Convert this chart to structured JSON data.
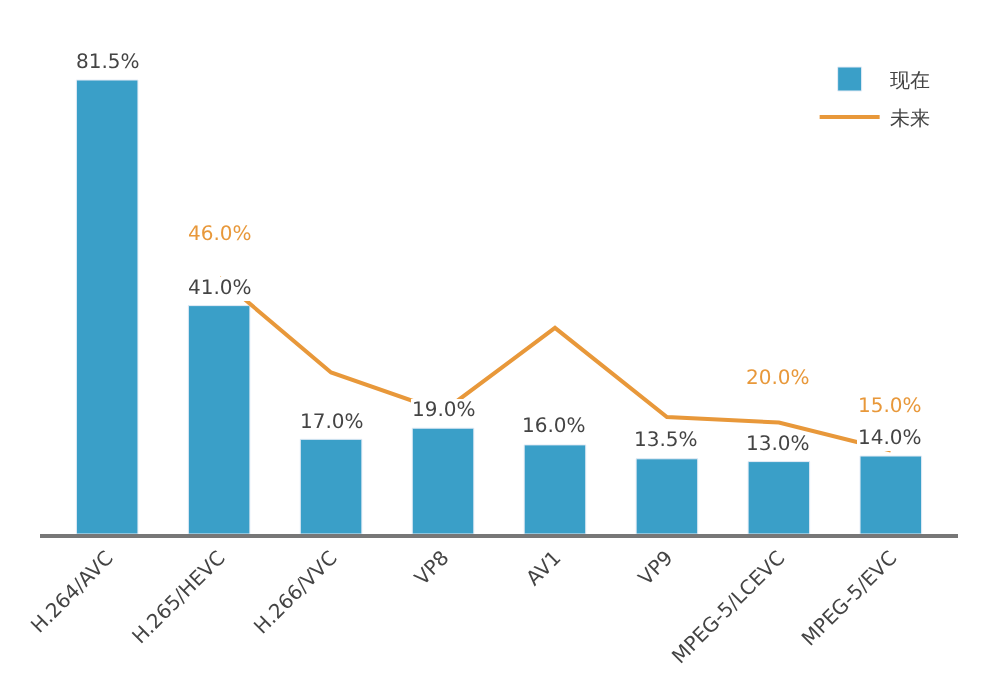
{
  "chart_data": {
    "type": "bar",
    "categories": [
      "H.264/AVC",
      "H.265/HEVC",
      "H.266/VVC",
      "VP8",
      "AV1",
      "VP9",
      "MPEG-5/LCEVC",
      "MPEG-5/EVC"
    ],
    "series": [
      {
        "name": "现在",
        "color": "#3a9fc8",
        "values": [
          81.5,
          41.0,
          17.0,
          19.0,
          16.0,
          13.5,
          13.0,
          14.0
        ],
        "value_labels": [
          "81.5%",
          "41.0%",
          "17.0%",
          "19.0%",
          "16.0%",
          "13.5%",
          "13.0%",
          "14.0%"
        ]
      },
      {
        "name": "未来",
        "type": "line",
        "color": "#e8983a",
        "values": [
          null,
          46.0,
          29,
          22,
          37,
          21,
          20.0,
          15.0
        ],
        "value_labels": [
          null,
          "46.0%",
          null,
          null,
          null,
          null,
          "20.0%",
          "15.0%"
        ]
      }
    ],
    "legend": "top right"
  }
}
